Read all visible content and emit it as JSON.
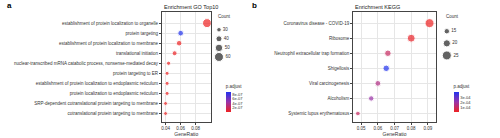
{
  "chart_data": [
    {
      "type": "scatter",
      "annotations": [
        "a"
      ],
      "title": "Enrichment GO Top10",
      "x_label": "GeneRatio",
      "categories": [
        "establishment of protein localization to organelle",
        "protein targeting",
        "establishment of protein localization to membrane",
        "translational initiation",
        "nuclear-transcribed mRNA catabolic process, nonsense-mediated decay",
        "protein targeting to ER",
        "establishment of protein localization to endoplasmic reticulum",
        "protein localization to endoplasmic reticulum",
        "SRP-dependent cotranslational protein targeting to membrane",
        "cotranslational protein targeting to membrane"
      ],
      "values": [
        0.095,
        0.06,
        0.058,
        0.052,
        0.044,
        0.042,
        0.042,
        0.042,
        0.04,
        0.04
      ],
      "count": [
        60,
        38,
        37,
        33,
        28,
        27,
        27,
        27,
        26,
        26
      ],
      "p_adjust": [
        1e-08,
        9e-07,
        1e-08,
        2e-08,
        1e-08,
        1e-08,
        1e-08,
        1e-08,
        1e-08,
        1e-08
      ],
      "xlim": [
        0.035,
        0.1
      ],
      "xticks": [
        0.04,
        0.06,
        0.08
      ],
      "grid": true,
      "count_legend": {
        "title": "Count",
        "values": [
          30,
          40,
          50,
          60
        ]
      },
      "colorbar": {
        "title": "p.adjust",
        "range": [
          1e-08,
          9e-07
        ],
        "ticks": [
          {
            "value": 2e-07,
            "label": "2e-07"
          },
          {
            "value": 4e-07,
            "label": "4e-07"
          },
          {
            "value": 6e-07,
            "label": "6e-07"
          },
          {
            "value": 8e-07,
            "label": "8e-07"
          }
        ]
      }
    },
    {
      "type": "scatter",
      "annotations": [
        "b"
      ],
      "title": "Enrichment KEGG",
      "x_label": "GeneRatio",
      "categories": [
        "Coronavirus disease - COVID-19",
        "Ribosome",
        "Neutrophil extracellular trap formation",
        "Shigellosis",
        "Viral carcinogenesis",
        "Alcoholism",
        "Systemic lupus erythematosus"
      ],
      "values": [
        0.091,
        0.08,
        0.066,
        0.065,
        0.06,
        0.056,
        0.048
      ],
      "count": [
        25,
        22,
        18,
        18,
        16,
        15,
        13
      ],
      "p_adjust": [
        1e-05,
        2e-05,
        0.0001,
        0.0004,
        0.00015,
        0.0002,
        0.0001
      ],
      "xlim": [
        0.045,
        0.095
      ],
      "xticks": [
        0.05,
        0.06,
        0.07,
        0.08,
        0.09
      ],
      "grid": true,
      "count_legend": {
        "title": "Count",
        "values": [
          15,
          20,
          25
        ]
      },
      "colorbar": {
        "title": "p.adjust",
        "range": [
          1e-05,
          0.0004
        ],
        "ticks": [
          {
            "value": 0.0001,
            "label": "1e-04"
          },
          {
            "value": 0.0002,
            "label": "2e-04"
          },
          {
            "value": 0.0003,
            "label": "3e-04"
          }
        ]
      }
    }
  ]
}
